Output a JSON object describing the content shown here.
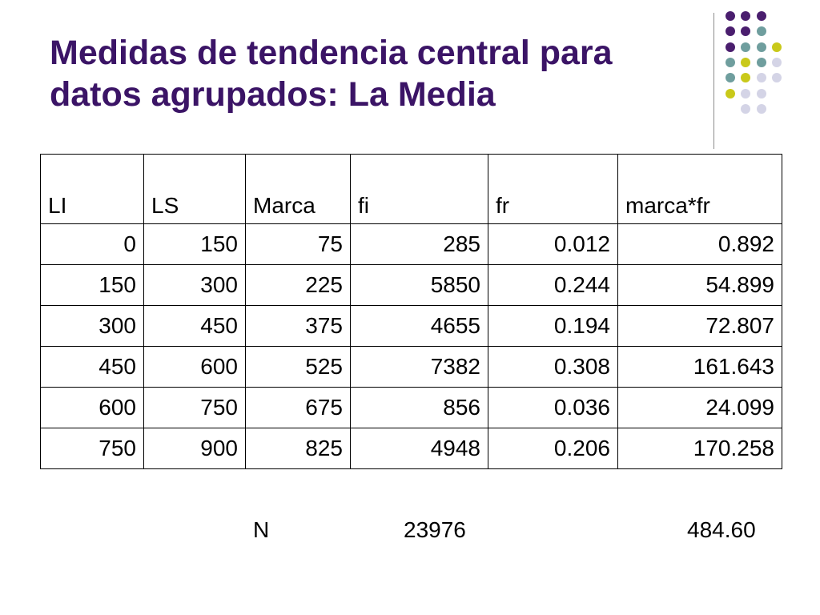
{
  "title": {
    "line1": "Medidas de tendencia central para",
    "line2": "datos agrupados: La Media"
  },
  "decoration": {
    "colors": {
      "purple": "#4a1e6e",
      "teal": "#6f9e9e",
      "lime": "#c9c91a",
      "lavender": "#d4d4e6"
    },
    "grid": [
      [
        "purple",
        "purple",
        "purple",
        null
      ],
      [
        "purple",
        "purple",
        "teal",
        null
      ],
      [
        "purple",
        "teal",
        "teal",
        "lime"
      ],
      [
        "teal",
        "lime",
        "teal",
        "lavender"
      ],
      [
        "teal",
        "lime",
        "lavender",
        "lavender"
      ],
      [
        "lime",
        "lavender",
        "lavender",
        null
      ],
      [
        null,
        "lavender",
        "lavender",
        null
      ]
    ]
  },
  "table": {
    "headers": [
      "LI",
      "LS",
      "Marca",
      "fi",
      "fr",
      "marca*fr"
    ],
    "rows": [
      [
        "0",
        "150",
        "75",
        "285",
        "0.012",
        "0.892"
      ],
      [
        "150",
        "300",
        "225",
        "5850",
        "0.244",
        "54.899"
      ],
      [
        "300",
        "450",
        "375",
        "4655",
        "0.194",
        "72.807"
      ],
      [
        "450",
        "600",
        "525",
        "7382",
        "0.308",
        "161.643"
      ],
      [
        "600",
        "750",
        "675",
        "856",
        "0.036",
        "24.099"
      ],
      [
        "750",
        "900",
        "825",
        "4948",
        "0.206",
        "170.258"
      ]
    ]
  },
  "summary": {
    "n_label": "N",
    "n_total": "23976",
    "mean_total": "484.60"
  }
}
